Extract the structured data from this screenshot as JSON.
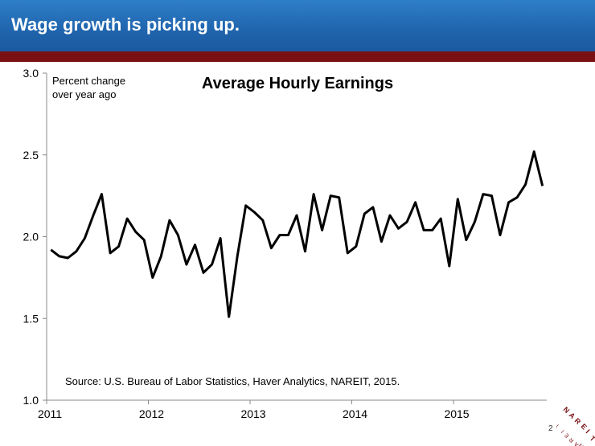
{
  "header": {
    "title": "Wage growth is picking up."
  },
  "page_number": "2",
  "logo": {
    "text": "NAREIT",
    "color": "#7a1014"
  },
  "colors": {
    "header_blue": "#1f64ad",
    "header_band": "#7a1014",
    "line": "#000000"
  },
  "chart_data": {
    "type": "line",
    "title": "Average Hourly Earnings",
    "ylabel": "Percent change over year ago",
    "ylabel_lines": [
      "Percent change",
      "over year ago"
    ],
    "source": "Source: U.S. Bureau of Labor Statistics, Haver Analytics, NAREIT, 2015.",
    "ylim": [
      1.0,
      3.0
    ],
    "yticks": [
      "1.0",
      "1.5",
      "2.0",
      "2.5",
      "3.0"
    ],
    "xticks": [
      "2011",
      "2012",
      "2013",
      "2014",
      "2015"
    ],
    "x_start_year": 2011,
    "grid": false,
    "series": [
      {
        "values": [
          1.92,
          1.88,
          1.87,
          1.91,
          1.99,
          2.13,
          2.26,
          1.9,
          1.94,
          2.11,
          2.03,
          1.98,
          1.75,
          1.88,
          2.1,
          2.01,
          1.83,
          1.95,
          1.78,
          1.83,
          1.99,
          1.51,
          1.88,
          2.19,
          2.15,
          2.1,
          1.93,
          2.01,
          2.01,
          2.13,
          1.91,
          2.26,
          2.04,
          2.25,
          2.24,
          1.9,
          1.94,
          2.14,
          2.18,
          1.97,
          2.13,
          2.05,
          2.09,
          2.21,
          2.04,
          2.04,
          2.11,
          1.82,
          2.23,
          1.98,
          2.09,
          2.26,
          2.25,
          2.01,
          2.21,
          2.24,
          2.32,
          2.52,
          2.31
        ]
      }
    ]
  }
}
